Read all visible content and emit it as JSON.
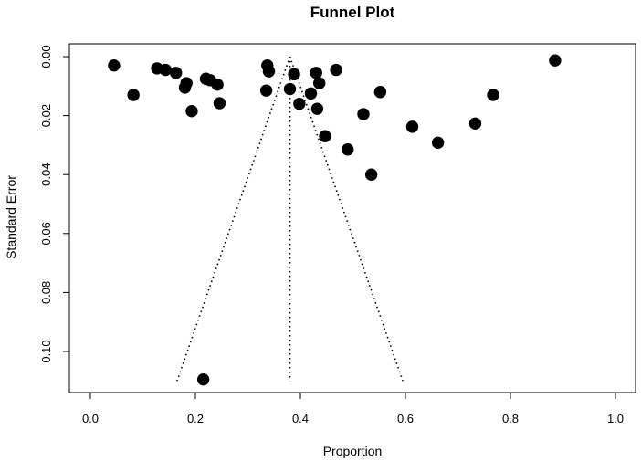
{
  "chart_data": {
    "type": "scatter",
    "title": "Funnel Plot",
    "xlabel": "Proportion",
    "ylabel": "Standard Error",
    "xlim": [
      0.0,
      1.0
    ],
    "ylim": [
      0.11,
      0.0
    ],
    "y_reversed": true,
    "grid": false,
    "x_ticks": [
      0.0,
      0.2,
      0.4,
      0.6,
      0.8,
      1.0
    ],
    "x_tick_labels": [
      "0.0",
      "0.2",
      "0.4",
      "0.6",
      "0.8",
      "1.0"
    ],
    "y_ticks": [
      0.0,
      0.02,
      0.04,
      0.06,
      0.08,
      0.1
    ],
    "y_tick_labels": [
      "0.00",
      "0.02",
      "0.04",
      "0.06",
      "0.08",
      "0.10"
    ],
    "points": [
      {
        "x": 0.045,
        "y": 0.003
      },
      {
        "x": 0.082,
        "y": 0.013
      },
      {
        "x": 0.127,
        "y": 0.004
      },
      {
        "x": 0.143,
        "y": 0.0045
      },
      {
        "x": 0.163,
        "y": 0.0055
      },
      {
        "x": 0.18,
        "y": 0.0105
      },
      {
        "x": 0.183,
        "y": 0.009
      },
      {
        "x": 0.193,
        "y": 0.0185
      },
      {
        "x": 0.22,
        "y": 0.0075
      },
      {
        "x": 0.228,
        "y": 0.008
      },
      {
        "x": 0.242,
        "y": 0.0095
      },
      {
        "x": 0.246,
        "y": 0.0158
      },
      {
        "x": 0.215,
        "y": 0.1095
      },
      {
        "x": 0.337,
        "y": 0.003
      },
      {
        "x": 0.34,
        "y": 0.005
      },
      {
        "x": 0.335,
        "y": 0.0115
      },
      {
        "x": 0.38,
        "y": 0.011
      },
      {
        "x": 0.388,
        "y": 0.006
      },
      {
        "x": 0.398,
        "y": 0.016
      },
      {
        "x": 0.42,
        "y": 0.0125
      },
      {
        "x": 0.43,
        "y": 0.0055
      },
      {
        "x": 0.432,
        "y": 0.0177
      },
      {
        "x": 0.436,
        "y": 0.009
      },
      {
        "x": 0.447,
        "y": 0.027
      },
      {
        "x": 0.468,
        "y": 0.0045
      },
      {
        "x": 0.49,
        "y": 0.0315
      },
      {
        "x": 0.52,
        "y": 0.0195
      },
      {
        "x": 0.535,
        "y": 0.04
      },
      {
        "x": 0.552,
        "y": 0.012
      },
      {
        "x": 0.613,
        "y": 0.0238
      },
      {
        "x": 0.662,
        "y": 0.0292
      },
      {
        "x": 0.733,
        "y": 0.0227
      },
      {
        "x": 0.767,
        "y": 0.013
      },
      {
        "x": 0.885,
        "y": 0.0013
      }
    ],
    "reference_lines": {
      "style": "dotted",
      "center_x": 0.38,
      "funnel_apex": {
        "x": 0.38,
        "y": 0.0
      },
      "funnel_left_bottom": {
        "x": 0.165,
        "y": 0.11
      },
      "funnel_right_bottom": {
        "x": 0.595,
        "y": 0.11
      }
    }
  }
}
